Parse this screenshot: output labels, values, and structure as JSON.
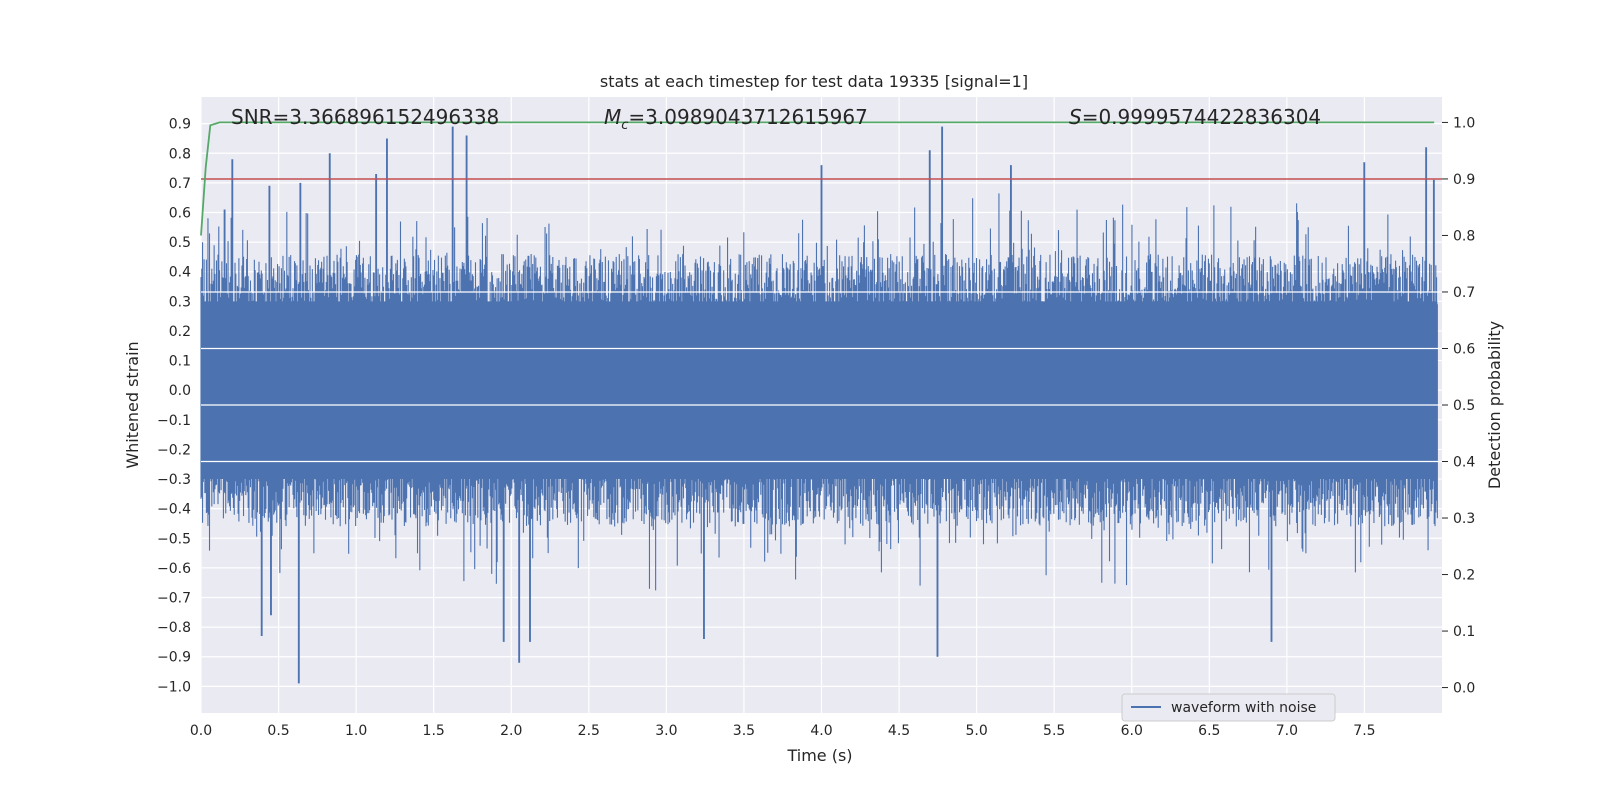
{
  "chart_data": {
    "type": "line",
    "title": "stats at each timestep for test data 19335 [signal=1]",
    "xlabel": "Time (s)",
    "ylabel": "Whitened strain",
    "y2label": "Detection probability",
    "xlim": [
      0.0,
      8.0
    ],
    "ylim": [
      -1.09,
      0.99
    ],
    "y2lim": [
      -0.045,
      1.045
    ],
    "xticks": [
      "0.0",
      "0.5",
      "1.0",
      "1.5",
      "2.0",
      "2.5",
      "3.0",
      "3.5",
      "4.0",
      "4.5",
      "5.0",
      "5.5",
      "6.0",
      "6.5",
      "7.0",
      "7.5"
    ],
    "xtick_values": [
      0.0,
      0.5,
      1.0,
      1.5,
      2.0,
      2.5,
      3.0,
      3.5,
      4.0,
      4.5,
      5.0,
      5.5,
      6.0,
      6.5,
      7.0,
      7.5
    ],
    "yticks": [
      "0.9",
      "0.8",
      "0.7",
      "0.6",
      "0.5",
      "0.4",
      "0.3",
      "0.2",
      "0.1",
      "0.0",
      "−0.1",
      "−0.2",
      "−0.3",
      "−0.4",
      "−0.5",
      "−0.6",
      "−0.7",
      "−0.8",
      "−0.9",
      "−1.0"
    ],
    "ytick_values": [
      0.9,
      0.8,
      0.7,
      0.6,
      0.5,
      0.4,
      0.3,
      0.2,
      0.1,
      0.0,
      -0.1,
      -0.2,
      -0.3,
      -0.4,
      -0.5,
      -0.6,
      -0.7,
      -0.8,
      -0.9,
      -1.0
    ],
    "y2ticks": [
      "1.0",
      "0.9",
      "0.8",
      "0.7",
      "0.6",
      "0.5",
      "0.4",
      "0.3",
      "0.2",
      "0.1",
      "0.0"
    ],
    "y2tick_values": [
      1.0,
      0.9,
      0.8,
      0.7,
      0.6,
      0.5,
      0.4,
      0.3,
      0.2,
      0.1,
      0.0
    ],
    "grid": true,
    "legend": {
      "position": "bottom-right",
      "entries": [
        "waveform with noise"
      ]
    },
    "annotations": {
      "snr": "SNR=3.366896152496338",
      "mc_symbol": "M",
      "mc_sub": "c",
      "mc_value": "=3.0989043712615967",
      "s_symbol": "S",
      "s_value": "=0.9999574422836304"
    },
    "threshold": {
      "name": "detection threshold",
      "axis": "y2",
      "value": 0.9
    },
    "series": [
      {
        "name": "waveform with noise",
        "axis": "y",
        "kind": "noise",
        "duration_s": 7.97,
        "typical_amplitude": 0.28,
        "peaks": [
          {
            "t": 0.15,
            "v": 0.61
          },
          {
            "t": 0.2,
            "v": 0.78
          },
          {
            "t": 0.39,
            "v": -0.83
          },
          {
            "t": 0.45,
            "v": -0.76
          },
          {
            "t": 0.44,
            "v": 0.69
          },
          {
            "t": 0.63,
            "v": -0.99
          },
          {
            "t": 0.64,
            "v": 0.7
          },
          {
            "t": 0.83,
            "v": 0.8
          },
          {
            "t": 1.13,
            "v": 0.73
          },
          {
            "t": 1.2,
            "v": 0.85
          },
          {
            "t": 1.62,
            "v": 0.89
          },
          {
            "t": 1.71,
            "v": 0.86
          },
          {
            "t": 2.05,
            "v": -0.92
          },
          {
            "t": 1.95,
            "v": -0.85
          },
          {
            "t": 2.12,
            "v": -0.85
          },
          {
            "t": 3.24,
            "v": -0.84
          },
          {
            "t": 4.0,
            "v": 0.76
          },
          {
            "t": 4.75,
            "v": -0.9
          },
          {
            "t": 4.78,
            "v": 0.89
          },
          {
            "t": 4.7,
            "v": 0.81
          },
          {
            "t": 5.22,
            "v": 0.76
          },
          {
            "t": 6.9,
            "v": -0.85
          },
          {
            "t": 7.5,
            "v": 0.77
          },
          {
            "t": 7.9,
            "v": 0.82
          },
          {
            "t": 7.95,
            "v": 0.71
          }
        ]
      },
      {
        "name": "detection probability",
        "axis": "y2",
        "x": [
          0.0,
          0.03,
          0.06,
          0.12,
          7.95
        ],
        "y": [
          0.8,
          0.92,
          0.995,
          1.0,
          1.0
        ]
      }
    ]
  },
  "colors": {
    "background": "#eaeaf2",
    "grid": "#ffffff",
    "waveform": "#4c72b0",
    "probability": "#55a868",
    "threshold": "#c44e52"
  }
}
